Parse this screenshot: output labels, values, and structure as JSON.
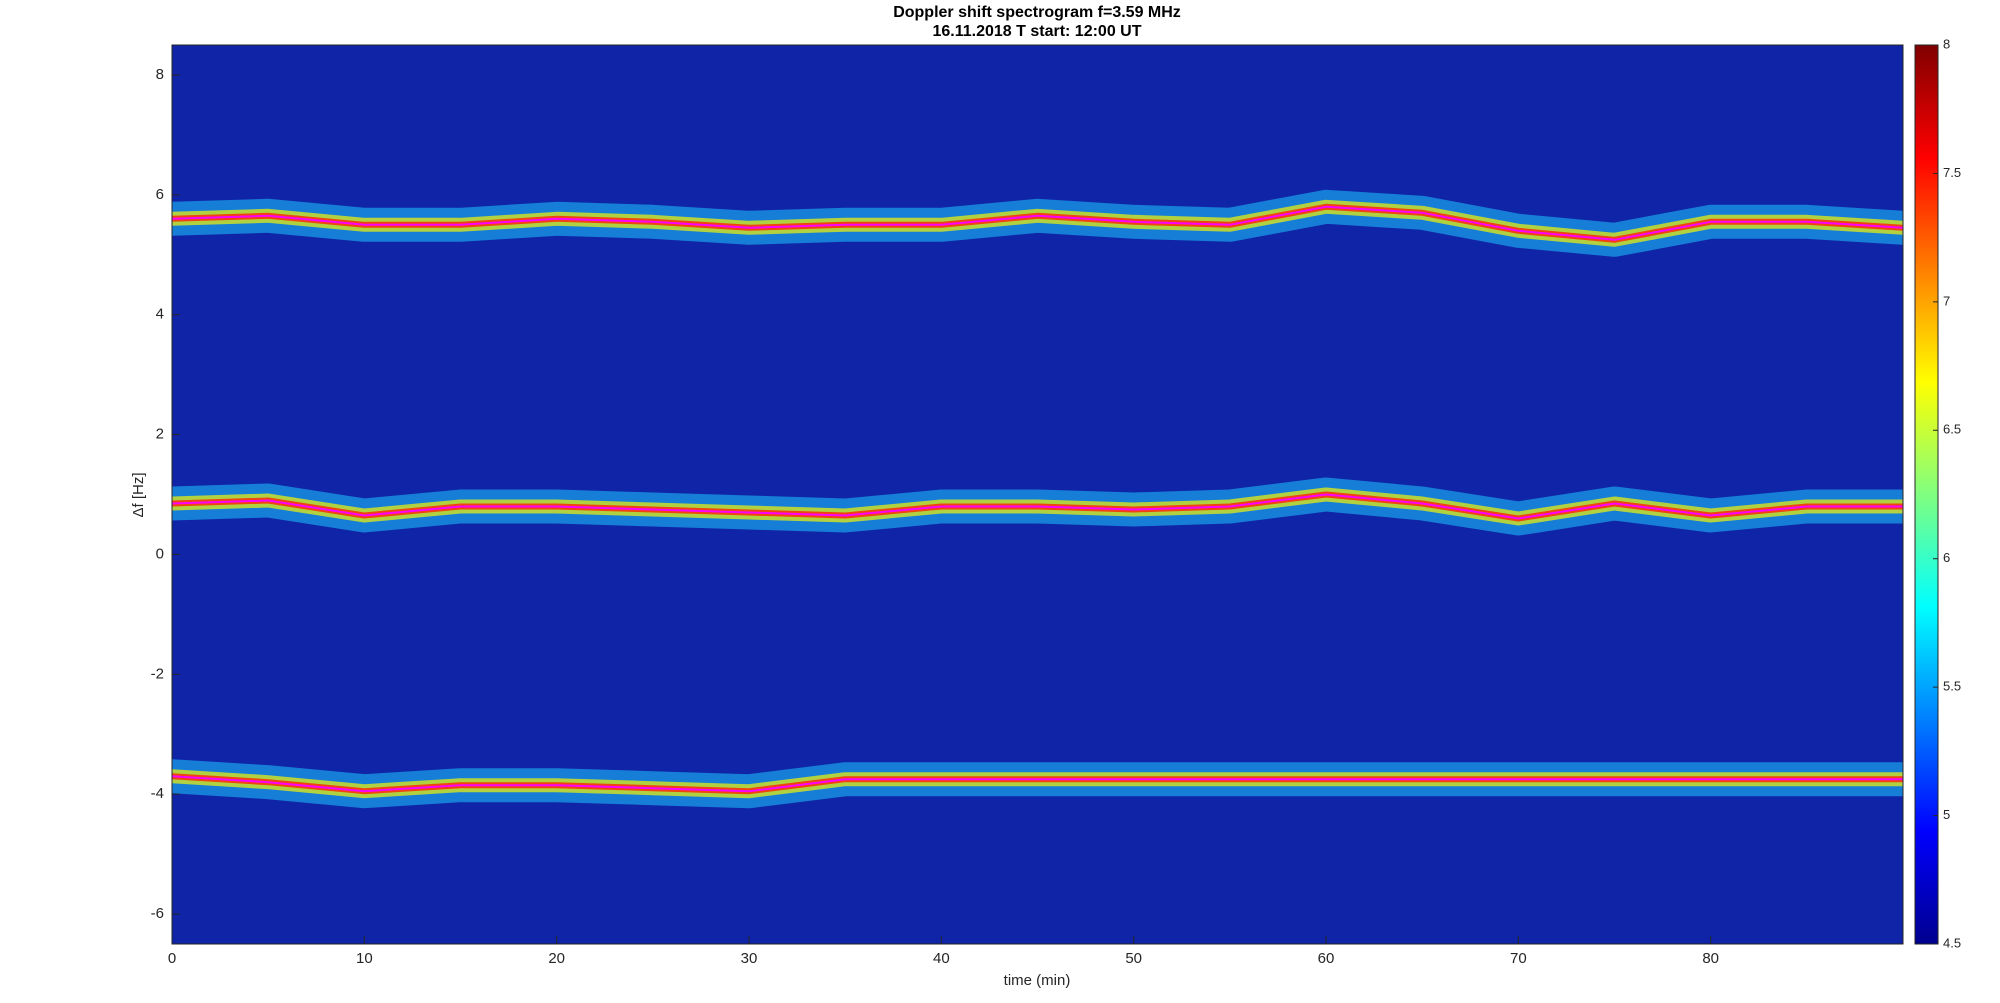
{
  "chart_data": {
    "type": "line",
    "title": "Doppler shift spectrogram f=3.59 MHz",
    "subtitle": "16.11.2018   T start: 12:00 UT",
    "x_label": "time (min)",
    "y_label": "Δf [Hz]",
    "x": [
      0,
      5,
      10,
      15,
      20,
      25,
      30,
      35,
      40,
      45,
      50,
      55,
      60,
      65,
      70,
      75,
      80,
      85,
      90
    ],
    "series": [
      {
        "color": "#ff00ff",
        "values": [
          5.6,
          5.65,
          5.5,
          5.5,
          5.6,
          5.55,
          5.45,
          5.5,
          5.5,
          5.65,
          5.55,
          5.5,
          5.8,
          5.7,
          5.4,
          5.25,
          5.55,
          5.55,
          5.45
        ]
      },
      {
        "color": "#ff00ff",
        "values": [
          0.85,
          0.9,
          0.65,
          0.8,
          0.8,
          0.75,
          0.7,
          0.65,
          0.8,
          0.8,
          0.75,
          0.8,
          1.0,
          0.85,
          0.6,
          0.85,
          0.65,
          0.8,
          0.8
        ]
      },
      {
        "color": "#ff00ff",
        "values": [
          -3.7,
          -3.8,
          -3.95,
          -3.85,
          -3.85,
          -3.9,
          -3.95,
          -3.75,
          -3.75,
          -3.75,
          -3.75,
          -3.75,
          -3.75,
          -3.75,
          -3.75,
          -3.75,
          -3.75,
          -3.75,
          -3.75
        ]
      }
    ],
    "xlim": [
      0,
      90
    ],
    "xticks": [
      0,
      10,
      20,
      30,
      40,
      50,
      60,
      70,
      80
    ],
    "ylim": [
      -6.5,
      8.5
    ],
    "yticks": [
      -6,
      -4,
      -2,
      0,
      2,
      4,
      6,
      8
    ],
    "clim": [
      4.5,
      8
    ],
    "cticks": [
      4.5,
      5,
      5.5,
      6,
      6.5,
      7,
      7.5,
      8
    ]
  }
}
